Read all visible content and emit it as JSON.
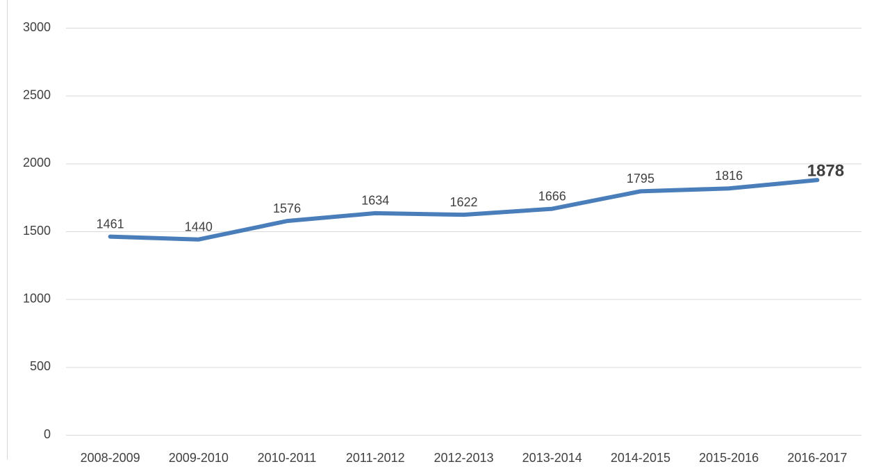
{
  "chart_data": {
    "type": "line",
    "categories": [
      "2008-2009",
      "2009-2010",
      "2010-2011",
      "2011-2012",
      "2012-2013",
      "2013-2014",
      "2014-2015",
      "2015-2016",
      "2016-2017"
    ],
    "values": [
      1461,
      1440,
      1576,
      1634,
      1622,
      1666,
      1795,
      1816,
      1878
    ],
    "color": "#4a7ebb",
    "ylim": [
      0,
      3000
    ],
    "yticks": [
      0,
      500,
      1000,
      1500,
      2000,
      2500,
      3000
    ],
    "grid": true
  }
}
